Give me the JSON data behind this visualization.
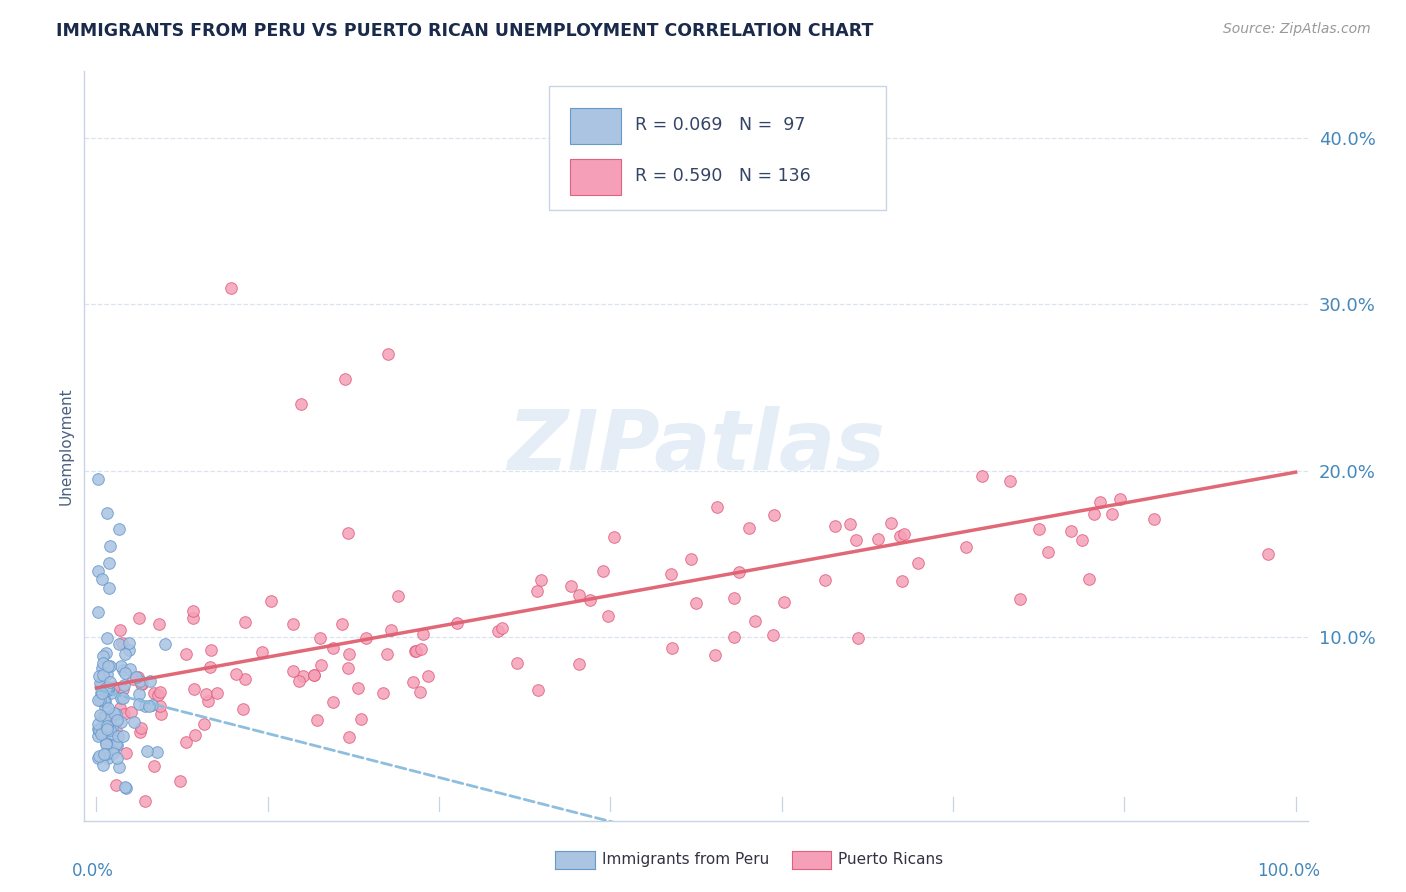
{
  "title": "IMMIGRANTS FROM PERU VS PUERTO RICAN UNEMPLOYMENT CORRELATION CHART",
  "source": "Source: ZipAtlas.com",
  "ylabel": "Unemployment",
  "series1_label": "Immigrants from Peru",
  "series2_label": "Puerto Ricans",
  "series1_color": "#aac4e2",
  "series2_color": "#f5a0b8",
  "series1_edge": "#6699cc",
  "series2_edge": "#e06080",
  "line1_color": "#88bbdd",
  "line2_color": "#e06070",
  "watermark_text": "ZIPatlas",
  "watermark_color": "#ccddf0",
  "ytick_labels": [
    "10.0%",
    "20.0%",
    "30.0%",
    "40.0%"
  ],
  "ytick_values": [
    0.1,
    0.2,
    0.3,
    0.4
  ],
  "background_color": "#ffffff",
  "grid_color": "#d8e0ee",
  "title_color": "#1a2a4a",
  "axis_label_color": "#4a6080",
  "tick_label_color": "#4488bb",
  "legend_text_color": "#334466"
}
